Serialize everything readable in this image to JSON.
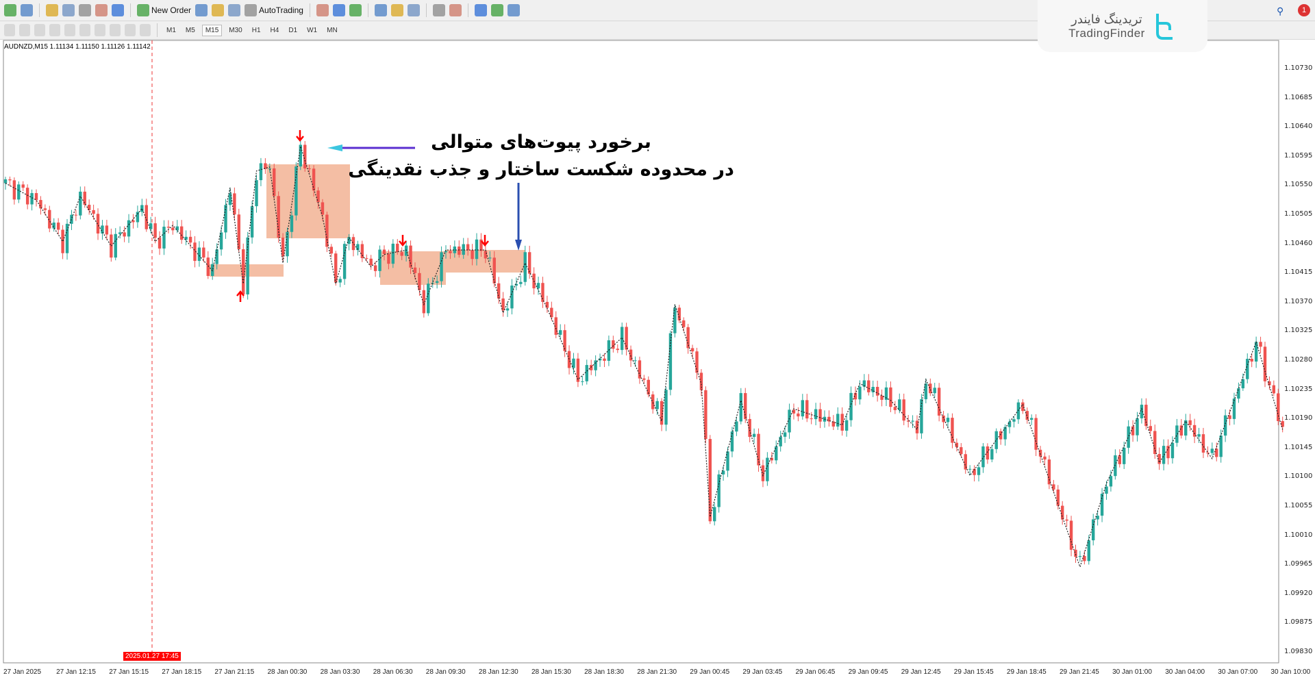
{
  "toolbar": {
    "new_order": "New Order",
    "autotrading": "AutoTrading",
    "icons_row1": [
      "new-chart-icon",
      "profiles-icon",
      "market-watch-icon",
      "navigator-icon",
      "favorites-icon",
      "data-window-icon",
      "strategy-tester-icon",
      "new-order-icon",
      "metaeditor-icon",
      "signals-icon",
      "terminal-icon",
      "autotrading-icon",
      "bar-chart-icon",
      "candlestick-icon",
      "line-chart-icon",
      "zoom-in-icon",
      "zoom-out-icon",
      "tile-windows-icon",
      "chart-shift-icon",
      "autoscroll-icon",
      "indicators-icon",
      "periods-icon",
      "templates-icon"
    ],
    "icons_row2": [
      "cursor-icon",
      "crosshair-icon",
      "vertical-line-icon",
      "horizontal-line-icon",
      "trendline-icon",
      "fibonacci-icon",
      "fib-fan-icon",
      "text-icon",
      "text-label-icon",
      "arrows-icon"
    ],
    "timeframes": [
      "M1",
      "M5",
      "M15",
      "M30",
      "H1",
      "H4",
      "D1",
      "W1",
      "MN"
    ],
    "active_timeframe": "M15"
  },
  "chart": {
    "symbol_label": "AUDNZD,M15  1.11134 1.11150 1.11126 1.11142",
    "price_labels": [
      "1.10730",
      "1.10685",
      "1.10640",
      "1.10595",
      "1.10550",
      "1.10505",
      "1.10460",
      "1.10415",
      "1.10370",
      "1.10325",
      "1.10280",
      "1.10235",
      "1.10190",
      "1.10145",
      "1.10100",
      "1.10055",
      "1.10010",
      "1.09965",
      "1.09920",
      "1.09875",
      "1.09830"
    ],
    "time_labels": [
      "27 Jan 2025",
      "27 Jan 12:15",
      "27 Jan 15:15",
      "27 Jan 18:15",
      "27 Jan 21:15",
      "28 Jan 00:30",
      "28 Jan 03:30",
      "28 Jan 06:30",
      "28 Jan 09:30",
      "28 Jan 12:30",
      "28 Jan 15:30",
      "28 Jan 18:30",
      "28 Jan 21:30",
      "29 Jan 00:45",
      "29 Jan 03:45",
      "29 Jan 06:45",
      "29 Jan 09:45",
      "29 Jan 12:45",
      "29 Jan 15:45",
      "29 Jan 18:45",
      "29 Jan 21:45",
      "30 Jan 01:00",
      "30 Jan 04:00",
      "30 Jan 07:00",
      "30 Jan 10:00"
    ],
    "crosshair_time": "2025.01.27 17:45",
    "annotation_line1": "برخورد پیوت‌های متوالی",
    "annotation_line2": "در محدوده شکست ساختار و جذب نقدینگی",
    "colors": {
      "bull": "#26a69a",
      "bear": "#ef5350",
      "zone": "#f2b394",
      "arrow": "#ff0000"
    },
    "zigzag": [
      [
        0,
        1.10553
      ],
      [
        7,
        1.10527
      ],
      [
        13,
        1.10463
      ],
      [
        17,
        1.10533
      ],
      [
        24,
        1.10456
      ],
      [
        31,
        1.10514
      ],
      [
        34,
        1.10463
      ],
      [
        38,
        1.10488
      ],
      [
        47,
        1.10418
      ],
      [
        51,
        1.10546
      ],
      [
        54,
        1.10398
      ],
      [
        57,
        1.10572
      ],
      [
        60,
        1.10578
      ],
      [
        63,
        1.1043
      ],
      [
        67,
        1.1061
      ],
      [
        72,
        1.10501
      ],
      [
        75,
        1.10398
      ],
      [
        78,
        1.10469
      ],
      [
        83,
        1.10424
      ],
      [
        86,
        1.10443
      ],
      [
        91,
        1.1045
      ],
      [
        95,
        1.10366
      ],
      [
        100,
        1.1045
      ],
      [
        109,
        1.1045
      ],
      [
        113,
        1.10353
      ],
      [
        118,
        1.1043
      ],
      [
        123,
        1.1036
      ],
      [
        130,
        1.1025
      ],
      [
        140,
        1.10315
      ],
      [
        149,
        1.10186
      ],
      [
        152,
        1.10366
      ],
      [
        158,
        1.10244
      ],
      [
        160,
        1.10038
      ],
      [
        167,
        1.10218
      ],
      [
        172,
        1.10102
      ],
      [
        179,
        1.10205
      ],
      [
        190,
        1.1018
      ],
      [
        194,
        1.10244
      ],
      [
        201,
        1.10218
      ],
      [
        207,
        1.10173
      ],
      [
        209,
        1.1025
      ],
      [
        219,
        1.10102
      ],
      [
        231,
        1.10212
      ],
      [
        244,
        1.09961
      ],
      [
        250,
        1.1009
      ],
      [
        258,
        1.10205
      ],
      [
        262,
        1.10122
      ],
      [
        268,
        1.10186
      ],
      [
        274,
        1.10128
      ],
      [
        284,
        1.10308
      ],
      [
        290,
        1.10173
      ]
    ]
  },
  "logo": {
    "fa": "تریدینگ فایندر",
    "en": "TradingFinder"
  },
  "notifications": "1"
}
